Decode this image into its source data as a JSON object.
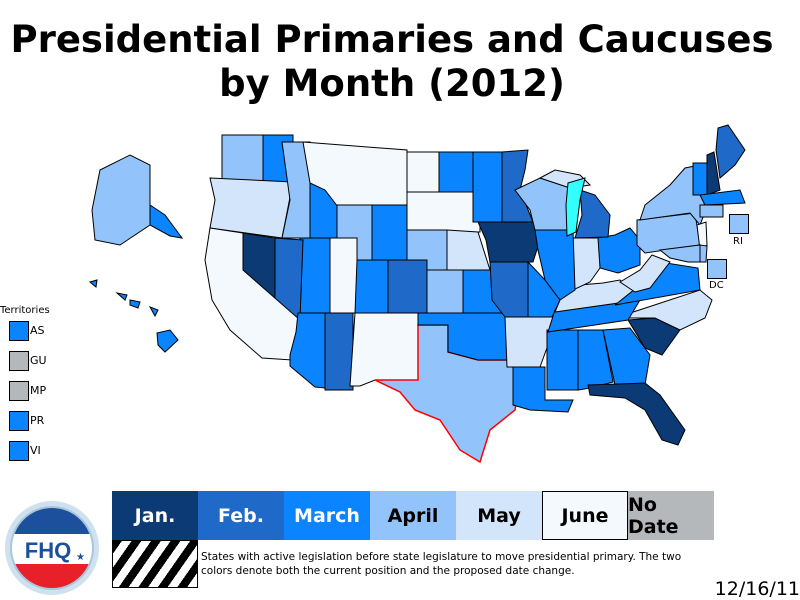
{
  "title_line1": "Presidential Primaries and Caucuses",
  "title_line2": "by Month (2012)",
  "colors": {
    "Jan.": "#0c3a74",
    "Feb.": "#1f69c9",
    "March": "#0a84ff",
    "April": "#93c3fb",
    "May": "#d2e5fb",
    "June": "#f4f9fe",
    "No Date": "#b4b8bb",
    "lake": "#33ffff",
    "legislation_border": "#ff0000"
  },
  "legend": [
    {
      "label": "Jan.",
      "text_color": "#ffffff"
    },
    {
      "label": "Feb.",
      "text_color": "#ffffff"
    },
    {
      "label": "March",
      "text_color": "#ffffff"
    },
    {
      "label": "April",
      "text_color": "#000000"
    },
    {
      "label": "May",
      "text_color": "#000000"
    },
    {
      "label": "June",
      "text_color": "#000000"
    },
    {
      "label": "No Date",
      "text_color": "#000000"
    }
  ],
  "legislation_note": "States with active legislation before state legislature to move presidential primary. The two colors denote both the current position and the proposed date change.",
  "date": "12/16/11",
  "logo_text": "FHQ",
  "territories_title": "Territories",
  "territories": [
    {
      "label": "AS",
      "month": "March"
    },
    {
      "label": "GU",
      "month": "No Date"
    },
    {
      "label": "MP",
      "month": "No Date"
    },
    {
      "label": "PR",
      "month": "March"
    },
    {
      "label": "VI",
      "month": "March"
    }
  ],
  "small_states": [
    {
      "label": "RI",
      "month": "April"
    },
    {
      "label": "DC",
      "month": "April"
    }
  ],
  "states": [
    {
      "id": "WA",
      "months": [
        "April",
        "March"
      ]
    },
    {
      "id": "OR",
      "months": [
        "May"
      ]
    },
    {
      "id": "ID",
      "months": [
        "April",
        "March"
      ]
    },
    {
      "id": "MT",
      "months": [
        "June"
      ]
    },
    {
      "id": "WY",
      "months": [
        "April",
        "March"
      ]
    },
    {
      "id": "ND",
      "months": [
        "June",
        "March"
      ]
    },
    {
      "id": "SD",
      "months": [
        "June"
      ]
    },
    {
      "id": "NE",
      "months": [
        "April",
        "May"
      ]
    },
    {
      "id": "KS",
      "months": [
        "April",
        "March"
      ]
    },
    {
      "id": "CO",
      "months": [
        "March",
        "Feb."
      ]
    },
    {
      "id": "UT",
      "months": [
        "March",
        "June"
      ]
    },
    {
      "id": "NV",
      "months": [
        "Jan.",
        "Feb."
      ]
    },
    {
      "id": "CA",
      "months": [
        "June"
      ]
    },
    {
      "id": "AZ",
      "months": [
        "March",
        "Feb."
      ]
    },
    {
      "id": "NM",
      "months": [
        "June"
      ]
    },
    {
      "id": "TX",
      "months": [
        "April"
      ],
      "legislation": true
    },
    {
      "id": "OK",
      "months": [
        "March"
      ]
    },
    {
      "id": "MN",
      "months": [
        "March",
        "Feb."
      ]
    },
    {
      "id": "IA",
      "months": [
        "Jan."
      ]
    },
    {
      "id": "MO",
      "months": [
        "Feb.",
        "March"
      ]
    },
    {
      "id": "AR",
      "months": [
        "May"
      ]
    },
    {
      "id": "LA",
      "months": [
        "March"
      ]
    },
    {
      "id": "MS",
      "months": [
        "March"
      ]
    },
    {
      "id": "AL",
      "months": [
        "March"
      ]
    },
    {
      "id": "GA",
      "months": [
        "March"
      ]
    },
    {
      "id": "FL",
      "months": [
        "Jan."
      ]
    },
    {
      "id": "SC",
      "months": [
        "Jan."
      ]
    },
    {
      "id": "NC",
      "months": [
        "May"
      ]
    },
    {
      "id": "TN",
      "months": [
        "March"
      ]
    },
    {
      "id": "KY",
      "months": [
        "May"
      ]
    },
    {
      "id": "VA",
      "months": [
        "March"
      ]
    },
    {
      "id": "WV",
      "months": [
        "May"
      ]
    },
    {
      "id": "OH",
      "months": [
        "March"
      ]
    },
    {
      "id": "IN",
      "months": [
        "May"
      ]
    },
    {
      "id": "IL",
      "months": [
        "March"
      ]
    },
    {
      "id": "WI",
      "months": [
        "April"
      ]
    },
    {
      "id": "MI",
      "months": [
        "Feb.",
        "May"
      ]
    },
    {
      "id": "PA",
      "months": [
        "April"
      ]
    },
    {
      "id": "NY",
      "months": [
        "April"
      ]
    },
    {
      "id": "VT",
      "months": [
        "March"
      ]
    },
    {
      "id": "NH",
      "months": [
        "Jan."
      ]
    },
    {
      "id": "ME",
      "months": [
        "Feb."
      ]
    },
    {
      "id": "MA",
      "months": [
        "March"
      ]
    },
    {
      "id": "CT",
      "months": [
        "April"
      ]
    },
    {
      "id": "NJ",
      "months": [
        "June"
      ]
    },
    {
      "id": "MD",
      "months": [
        "April"
      ]
    },
    {
      "id": "DE",
      "months": [
        "April"
      ]
    },
    {
      "id": "AK",
      "months": [
        "April",
        "March"
      ]
    },
    {
      "id": "HI",
      "months": [
        "March"
      ]
    }
  ]
}
